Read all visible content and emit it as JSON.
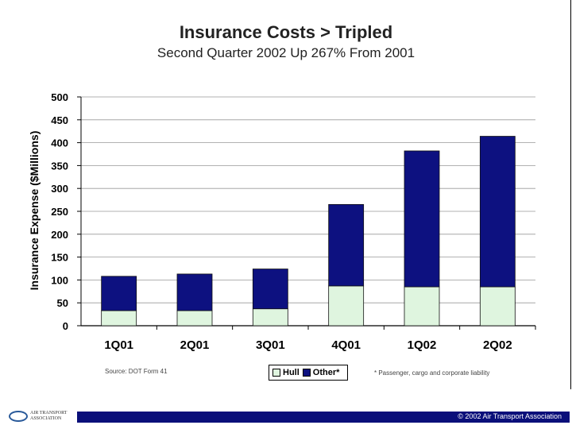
{
  "title": "Insurance Costs > Tripled",
  "subtitle": "Second Quarter 2002 Up 267% From 2001",
  "source": "Source: DOT Form 41",
  "footnote": "* Passenger, cargo and corporate liability",
  "footer": {
    "copyright": "© 2002 Air Transport Association",
    "logo_text_line1": "AIR TRANSPORT",
    "logo_text_line2": "ASSOCIATION"
  },
  "colors": {
    "hull": "#dff5df",
    "other": "#0d1180",
    "footer_bar": "#0a0f7a"
  },
  "chart_data": {
    "type": "bar",
    "stacked": true,
    "categories": [
      "1Q01",
      "2Q01",
      "3Q01",
      "4Q01",
      "1Q02",
      "2Q02"
    ],
    "series": [
      {
        "name": "Hull",
        "values": [
          33,
          33,
          37,
          87,
          85,
          85
        ]
      },
      {
        "name": "Other*",
        "values": [
          75,
          80,
          87,
          178,
          297,
          329
        ]
      }
    ],
    "ylabel": "Insurance Expense ($Millions)",
    "xlabel": "",
    "ylim": [
      0,
      500
    ],
    "yticks": [
      0,
      50,
      100,
      150,
      200,
      250,
      300,
      350,
      400,
      450,
      500
    ],
    "grid": true,
    "legend_position": "bottom-center"
  }
}
